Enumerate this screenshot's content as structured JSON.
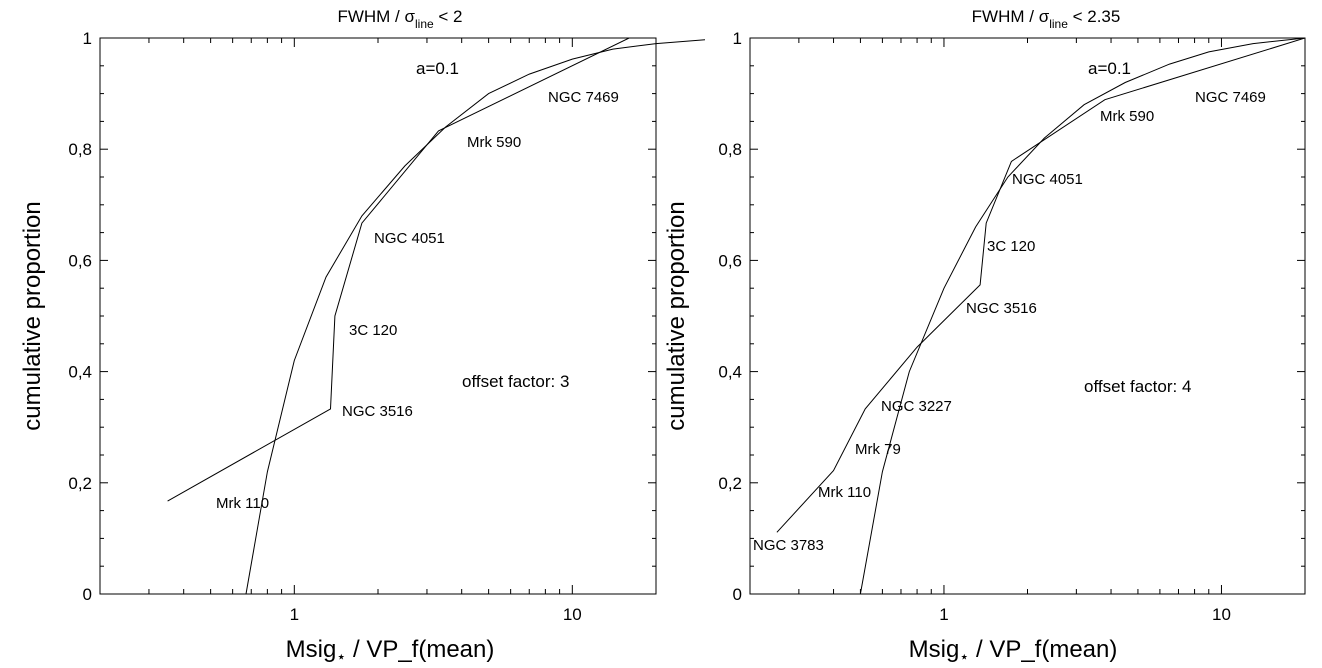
{
  "chart_data": [
    {
      "type": "line",
      "title": "FWHM / σ",
      "title_subscript": "line",
      "title_suffix": "< 2",
      "xlabel": "Msig",
      "xlabel_star": "⋆",
      "xlabel_suffix": " / VP_f(mean)",
      "ylabel": "cumulative proportion",
      "xscale": "log",
      "xlim": [
        0.2,
        20
      ],
      "ylim": [
        0,
        1
      ],
      "x_ticks": [
        1,
        10
      ],
      "x_tick_labels": [
        "1",
        "10"
      ],
      "y_ticks": [
        0,
        0.2,
        0.4,
        0.6,
        0.8,
        1
      ],
      "y_tick_labels": [
        "0",
        "0,2",
        "0,4",
        "0,6",
        "0,8",
        "1"
      ],
      "grid": false,
      "annotations": [
        "a=0.1",
        "offset factor: 3"
      ],
      "series": [
        {
          "role": "empirical",
          "x": [
            0.35,
            1.35,
            1.4,
            1.75,
            3.3,
            16.0
          ],
          "y": [
            0.167,
            0.333,
            0.5,
            0.667,
            0.833,
            1.0
          ],
          "labels": [
            "Mrk 110",
            "NGC 3516",
            "3C 120",
            "NGC 4051",
            "Mrk 590",
            "NGC 7469"
          ]
        },
        {
          "role": "model",
          "x": [
            0.67,
            0.8,
            1.0,
            1.3,
            1.75,
            2.5,
            3.5,
            5.0,
            7.0,
            10.0,
            14.0,
            20.0,
            30.0
          ],
          "y": [
            0.0,
            0.22,
            0.42,
            0.57,
            0.68,
            0.77,
            0.84,
            0.9,
            0.935,
            0.962,
            0.98,
            0.99,
            0.997
          ]
        }
      ]
    },
    {
      "type": "line",
      "title": "FWHM / σ",
      "title_subscript": "line",
      "title_suffix": "< 2.35",
      "xlabel": "Msig",
      "xlabel_star": "⋆",
      "xlabel_suffix": " / VP_f(mean)",
      "ylabel": "cumulative proportion",
      "xscale": "log",
      "xlim": [
        0.2,
        20
      ],
      "ylim": [
        0,
        1
      ],
      "x_ticks": [
        1,
        10
      ],
      "x_tick_labels": [
        "1",
        "10"
      ],
      "y_ticks": [
        0,
        0.2,
        0.4,
        0.6,
        0.8,
        1
      ],
      "y_tick_labels": [
        "0",
        "0,2",
        "0,4",
        "0,6",
        "0,8",
        "1"
      ],
      "grid": false,
      "annotations": [
        "a=0.1",
        "offset factor: 4"
      ],
      "series": [
        {
          "role": "empirical",
          "x": [
            0.25,
            0.4,
            0.52,
            0.8,
            1.35,
            1.42,
            1.75,
            3.8,
            20.0
          ],
          "y": [
            0.111,
            0.222,
            0.333,
            0.444,
            0.556,
            0.667,
            0.778,
            0.889,
            1.0
          ],
          "labels": [
            "NGC 3783",
            "Mrk 110",
            "Mrk 79",
            "NGC 3227",
            "NGC 3516",
            "3C 120",
            "NGC 4051",
            "Mrk 590",
            "NGC 7469"
          ]
        },
        {
          "role": "model",
          "x": [
            0.5,
            0.6,
            0.75,
            1.0,
            1.3,
            1.7,
            2.3,
            3.2,
            4.5,
            6.5,
            9.0,
            13.0,
            20.0
          ],
          "y": [
            0.0,
            0.22,
            0.4,
            0.55,
            0.66,
            0.75,
            0.82,
            0.88,
            0.92,
            0.953,
            0.975,
            0.99,
            1.0
          ]
        }
      ]
    }
  ]
}
